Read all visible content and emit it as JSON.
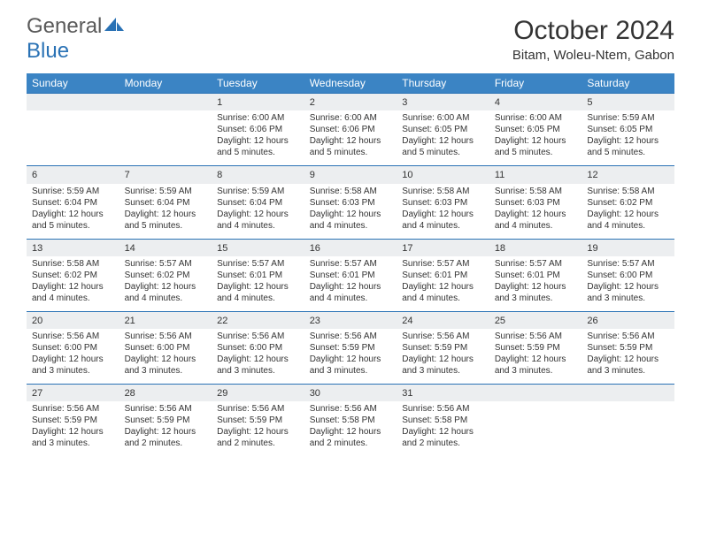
{
  "brand": {
    "part1": "General",
    "part2": "Blue"
  },
  "title": "October 2024",
  "location": "Bitam, Woleu-Ntem, Gabon",
  "colors": {
    "header_bg": "#3b84c4",
    "header_fg": "#ffffff",
    "rule": "#2a72b5",
    "daynum_bg": "#eceef0",
    "text": "#333333",
    "logo_gray": "#5a5a5a",
    "logo_blue": "#2a72b5",
    "page_bg": "#ffffff"
  },
  "fonts": {
    "title_pt": 30,
    "location_pt": 15,
    "weekday_pt": 12,
    "daynum_pt": 11,
    "body_pt": 10
  },
  "weekdays": [
    "Sunday",
    "Monday",
    "Tuesday",
    "Wednesday",
    "Thursday",
    "Friday",
    "Saturday"
  ],
  "weeks": [
    [
      null,
      null,
      {
        "n": "1",
        "sr": "Sunrise: 6:00 AM",
        "ss": "Sunset: 6:06 PM",
        "d1": "Daylight: 12 hours",
        "d2": "and 5 minutes."
      },
      {
        "n": "2",
        "sr": "Sunrise: 6:00 AM",
        "ss": "Sunset: 6:06 PM",
        "d1": "Daylight: 12 hours",
        "d2": "and 5 minutes."
      },
      {
        "n": "3",
        "sr": "Sunrise: 6:00 AM",
        "ss": "Sunset: 6:05 PM",
        "d1": "Daylight: 12 hours",
        "d2": "and 5 minutes."
      },
      {
        "n": "4",
        "sr": "Sunrise: 6:00 AM",
        "ss": "Sunset: 6:05 PM",
        "d1": "Daylight: 12 hours",
        "d2": "and 5 minutes."
      },
      {
        "n": "5",
        "sr": "Sunrise: 5:59 AM",
        "ss": "Sunset: 6:05 PM",
        "d1": "Daylight: 12 hours",
        "d2": "and 5 minutes."
      }
    ],
    [
      {
        "n": "6",
        "sr": "Sunrise: 5:59 AM",
        "ss": "Sunset: 6:04 PM",
        "d1": "Daylight: 12 hours",
        "d2": "and 5 minutes."
      },
      {
        "n": "7",
        "sr": "Sunrise: 5:59 AM",
        "ss": "Sunset: 6:04 PM",
        "d1": "Daylight: 12 hours",
        "d2": "and 5 minutes."
      },
      {
        "n": "8",
        "sr": "Sunrise: 5:59 AM",
        "ss": "Sunset: 6:04 PM",
        "d1": "Daylight: 12 hours",
        "d2": "and 4 minutes."
      },
      {
        "n": "9",
        "sr": "Sunrise: 5:58 AM",
        "ss": "Sunset: 6:03 PM",
        "d1": "Daylight: 12 hours",
        "d2": "and 4 minutes."
      },
      {
        "n": "10",
        "sr": "Sunrise: 5:58 AM",
        "ss": "Sunset: 6:03 PM",
        "d1": "Daylight: 12 hours",
        "d2": "and 4 minutes."
      },
      {
        "n": "11",
        "sr": "Sunrise: 5:58 AM",
        "ss": "Sunset: 6:03 PM",
        "d1": "Daylight: 12 hours",
        "d2": "and 4 minutes."
      },
      {
        "n": "12",
        "sr": "Sunrise: 5:58 AM",
        "ss": "Sunset: 6:02 PM",
        "d1": "Daylight: 12 hours",
        "d2": "and 4 minutes."
      }
    ],
    [
      {
        "n": "13",
        "sr": "Sunrise: 5:58 AM",
        "ss": "Sunset: 6:02 PM",
        "d1": "Daylight: 12 hours",
        "d2": "and 4 minutes."
      },
      {
        "n": "14",
        "sr": "Sunrise: 5:57 AM",
        "ss": "Sunset: 6:02 PM",
        "d1": "Daylight: 12 hours",
        "d2": "and 4 minutes."
      },
      {
        "n": "15",
        "sr": "Sunrise: 5:57 AM",
        "ss": "Sunset: 6:01 PM",
        "d1": "Daylight: 12 hours",
        "d2": "and 4 minutes."
      },
      {
        "n": "16",
        "sr": "Sunrise: 5:57 AM",
        "ss": "Sunset: 6:01 PM",
        "d1": "Daylight: 12 hours",
        "d2": "and 4 minutes."
      },
      {
        "n": "17",
        "sr": "Sunrise: 5:57 AM",
        "ss": "Sunset: 6:01 PM",
        "d1": "Daylight: 12 hours",
        "d2": "and 4 minutes."
      },
      {
        "n": "18",
        "sr": "Sunrise: 5:57 AM",
        "ss": "Sunset: 6:01 PM",
        "d1": "Daylight: 12 hours",
        "d2": "and 3 minutes."
      },
      {
        "n": "19",
        "sr": "Sunrise: 5:57 AM",
        "ss": "Sunset: 6:00 PM",
        "d1": "Daylight: 12 hours",
        "d2": "and 3 minutes."
      }
    ],
    [
      {
        "n": "20",
        "sr": "Sunrise: 5:56 AM",
        "ss": "Sunset: 6:00 PM",
        "d1": "Daylight: 12 hours",
        "d2": "and 3 minutes."
      },
      {
        "n": "21",
        "sr": "Sunrise: 5:56 AM",
        "ss": "Sunset: 6:00 PM",
        "d1": "Daylight: 12 hours",
        "d2": "and 3 minutes."
      },
      {
        "n": "22",
        "sr": "Sunrise: 5:56 AM",
        "ss": "Sunset: 6:00 PM",
        "d1": "Daylight: 12 hours",
        "d2": "and 3 minutes."
      },
      {
        "n": "23",
        "sr": "Sunrise: 5:56 AM",
        "ss": "Sunset: 5:59 PM",
        "d1": "Daylight: 12 hours",
        "d2": "and 3 minutes."
      },
      {
        "n": "24",
        "sr": "Sunrise: 5:56 AM",
        "ss": "Sunset: 5:59 PM",
        "d1": "Daylight: 12 hours",
        "d2": "and 3 minutes."
      },
      {
        "n": "25",
        "sr": "Sunrise: 5:56 AM",
        "ss": "Sunset: 5:59 PM",
        "d1": "Daylight: 12 hours",
        "d2": "and 3 minutes."
      },
      {
        "n": "26",
        "sr": "Sunrise: 5:56 AM",
        "ss": "Sunset: 5:59 PM",
        "d1": "Daylight: 12 hours",
        "d2": "and 3 minutes."
      }
    ],
    [
      {
        "n": "27",
        "sr": "Sunrise: 5:56 AM",
        "ss": "Sunset: 5:59 PM",
        "d1": "Daylight: 12 hours",
        "d2": "and 3 minutes."
      },
      {
        "n": "28",
        "sr": "Sunrise: 5:56 AM",
        "ss": "Sunset: 5:59 PM",
        "d1": "Daylight: 12 hours",
        "d2": "and 2 minutes."
      },
      {
        "n": "29",
        "sr": "Sunrise: 5:56 AM",
        "ss": "Sunset: 5:59 PM",
        "d1": "Daylight: 12 hours",
        "d2": "and 2 minutes."
      },
      {
        "n": "30",
        "sr": "Sunrise: 5:56 AM",
        "ss": "Sunset: 5:58 PM",
        "d1": "Daylight: 12 hours",
        "d2": "and 2 minutes."
      },
      {
        "n": "31",
        "sr": "Sunrise: 5:56 AM",
        "ss": "Sunset: 5:58 PM",
        "d1": "Daylight: 12 hours",
        "d2": "and 2 minutes."
      },
      null,
      null
    ]
  ]
}
